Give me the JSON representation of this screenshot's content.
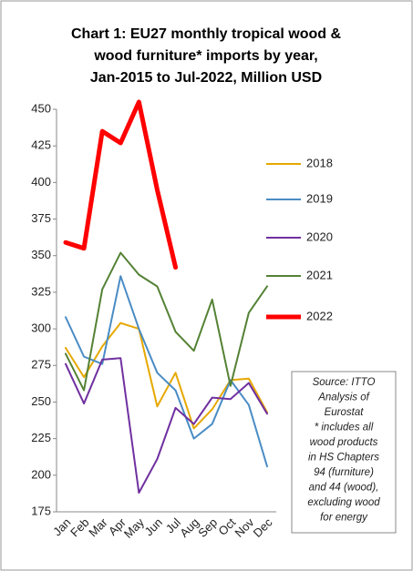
{
  "chart_data": {
    "type": "line",
    "title": [
      "Chart 1: EU27 monthly tropical wood &",
      "wood furniture* imports by year,",
      "Jan-2015 to Jul-2022, Million USD"
    ],
    "categories": [
      "Jan",
      "Feb",
      "Mar",
      "Apr",
      "May",
      "Jun",
      "Jul",
      "Aug",
      "Sep",
      "Oct",
      "Nov",
      "Dec"
    ],
    "series": [
      {
        "name": "2018",
        "color": "#e6a800",
        "values": [
          287,
          267,
          288,
          304,
          300,
          247,
          270,
          232,
          245,
          265,
          266,
          243
        ]
      },
      {
        "name": "2019",
        "color": "#4a8cc4",
        "values": [
          308,
          281,
          276,
          336,
          300,
          270,
          258,
          225,
          235,
          265,
          248,
          206
        ]
      },
      {
        "name": "2020",
        "color": "#7030a0",
        "values": [
          276,
          249,
          279,
          280,
          188,
          211,
          246,
          235,
          253,
          252,
          263,
          242
        ]
      },
      {
        "name": "2021",
        "color": "#548235",
        "values": [
          283,
          258,
          327,
          352,
          337,
          329,
          298,
          285,
          320,
          261,
          311,
          329
        ]
      },
      {
        "name": "2022",
        "color": "#ff0000",
        "values": [
          359,
          355,
          435,
          427,
          455,
          395,
          342,
          null,
          null,
          null,
          null,
          null
        ]
      }
    ],
    "ylim": [
      175,
      450
    ],
    "yticks": [
      175,
      200,
      225,
      250,
      275,
      300,
      325,
      350,
      375,
      400,
      425,
      450
    ],
    "grid": false,
    "legend": "right",
    "annotation": [
      "Source: ITTO",
      "Analysis of",
      "Eurostat",
      "* includes all",
      "wood products",
      "in HS Chapters",
      "94 (furniture)",
      "and 44 (wood),",
      "excluding wood",
      "for energy"
    ]
  }
}
